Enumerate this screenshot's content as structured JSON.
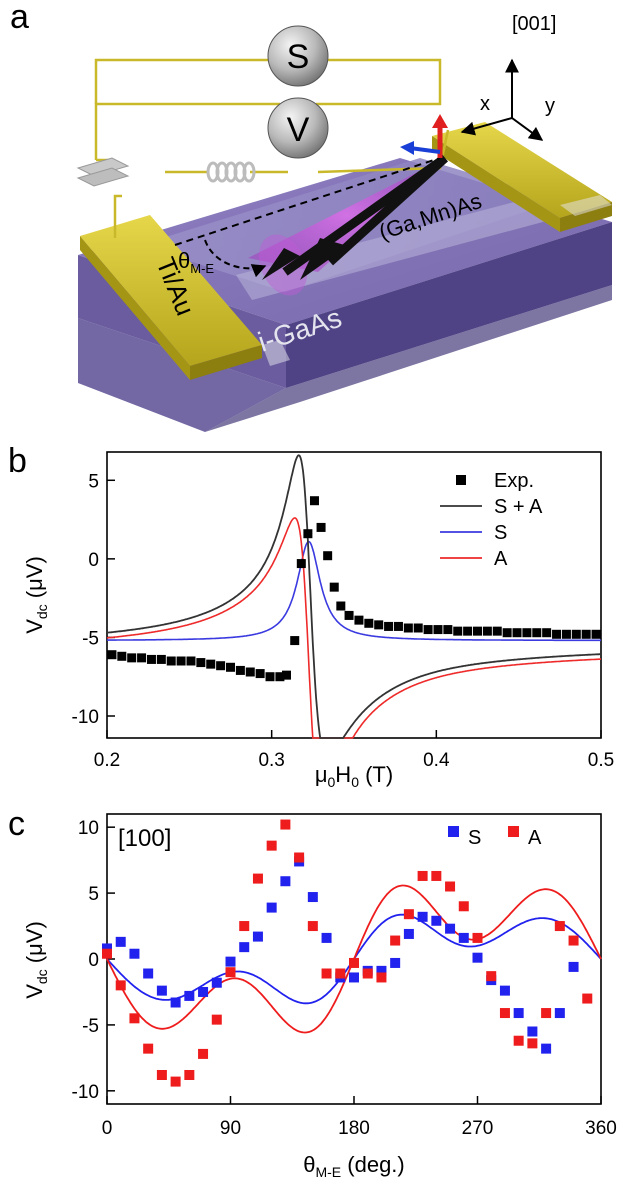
{
  "panel_a": {
    "letter": "a",
    "axis_001": "[001]",
    "axis_x": "x",
    "axis_y": "y",
    "source_label": "S",
    "meter_label": "V",
    "layer_label": "(Ga,Mn)As",
    "substrate_label": "i-GaAs",
    "contact_label": "Ti/Au",
    "angle_symbol": "θ",
    "angle_sub": "M-E"
  },
  "chart_data": [
    {
      "panel": "b",
      "type": "line",
      "xlabel": "μ0H0 (T)",
      "xlabel_main": "μ",
      "xlabel_sub1": "0",
      "xlabel_mid": "H",
      "xlabel_sub2": "0",
      "xlabel_unit": " (T)",
      "ylabel": "Vdc (μV)",
      "ylabel_main": "V",
      "ylabel_sub": "dc",
      "ylabel_unit": " (μV)",
      "xlim": [
        0.2,
        0.5
      ],
      "ylim": [
        -11.4,
        6.8
      ],
      "x_ticks": [
        0.2,
        0.3,
        0.4,
        0.5
      ],
      "x_tick_labels": [
        "0.2",
        "0.3",
        "0.4",
        "0.5"
      ],
      "y_ticks": [
        5,
        0,
        -5,
        -10
      ],
      "y_tick_labels": [
        "5",
        "0",
        "-5",
        "-10"
      ],
      "legend_position": "top-right",
      "legend": [
        "Exp.",
        "S + A",
        "S",
        "A"
      ],
      "colors": {
        "exp": "#000000",
        "fit": "#333333",
        "S": "#3a3ae0",
        "A": "#ee2a2a"
      },
      "fit_params": {
        "x0": 0.3225,
        "dH": 0.0085,
        "S_amp": 6.3,
        "A_amp": 9.2,
        "offset_low": -6.0,
        "offset_high": -5.2,
        "wall_center": 0.3,
        "wall_width": 0.012
      },
      "series": [
        {
          "name": "Exp.",
          "kind": "markers",
          "x": [
            0.203,
            0.209,
            0.215,
            0.221,
            0.227,
            0.233,
            0.239,
            0.245,
            0.251,
            0.257,
            0.263,
            0.269,
            0.275,
            0.281,
            0.287,
            0.293,
            0.299,
            0.305,
            0.309,
            0.314,
            0.318,
            0.322,
            0.326,
            0.33,
            0.334,
            0.338,
            0.342,
            0.347,
            0.353,
            0.359,
            0.365,
            0.371,
            0.377,
            0.383,
            0.389,
            0.395,
            0.401,
            0.407,
            0.413,
            0.419,
            0.425,
            0.431,
            0.437,
            0.443,
            0.449,
            0.455,
            0.461,
            0.467,
            0.473,
            0.479,
            0.485,
            0.491,
            0.497
          ],
          "y": [
            -6.1,
            -6.2,
            -6.3,
            -6.3,
            -6.4,
            -6.4,
            -6.5,
            -6.5,
            -6.5,
            -6.6,
            -6.7,
            -6.8,
            -6.9,
            -7.1,
            -7.2,
            -7.3,
            -7.5,
            -7.5,
            -7.4,
            -5.2,
            -0.3,
            1.6,
            3.7,
            2.0,
            0.2,
            -1.8,
            -3.0,
            -3.6,
            -3.9,
            -4.1,
            -4.2,
            -4.3,
            -4.3,
            -4.4,
            -4.4,
            -4.5,
            -4.5,
            -4.5,
            -4.6,
            -4.6,
            -4.6,
            -4.6,
            -4.6,
            -4.7,
            -4.7,
            -4.7,
            -4.7,
            -4.7,
            -4.8,
            -4.8,
            -4.8,
            -4.8,
            -4.8
          ]
        },
        {
          "name": "S + A",
          "kind": "line"
        },
        {
          "name": "S",
          "kind": "line"
        },
        {
          "name": "A",
          "kind": "line"
        }
      ]
    },
    {
      "panel": "c",
      "type": "scatter",
      "annotation": "[100]",
      "xlabel": "θM-E (deg.)",
      "xlabel_main": "θ",
      "xlabel_sub": "M-E",
      "xlabel_unit": " (deg.)",
      "ylabel": "Vdc (μV)",
      "ylabel_main": "V",
      "ylabel_sub": "dc",
      "ylabel_unit": " (μV)",
      "xlim": [
        0,
        360
      ],
      "ylim": [
        -11,
        11
      ],
      "x_ticks": [
        0,
        90,
        180,
        270,
        360
      ],
      "x_tick_labels": [
        "0",
        "90",
        "180",
        "270",
        "360"
      ],
      "y_ticks": [
        10,
        5,
        0,
        -5,
        -10
      ],
      "y_tick_labels": [
        "10",
        "5",
        "0",
        "-5",
        "-10"
      ],
      "legend_position": "top-right",
      "legend": [
        "S",
        "A"
      ],
      "colors": {
        "S": "#2222ee",
        "A": "#ee1c1c"
      },
      "series": [
        {
          "name": "S",
          "x": [
            0,
            10,
            20,
            30,
            40,
            50,
            60,
            70,
            80,
            90,
            100,
            110,
            120,
            130,
            140,
            150,
            160,
            170,
            180,
            190,
            200,
            210,
            220,
            230,
            240,
            250,
            260,
            270,
            280,
            290,
            300,
            310,
            320,
            330,
            340
          ],
          "y": [
            0.8,
            1.3,
            0.4,
            -1.1,
            -2.4,
            -3.3,
            -2.8,
            -2.5,
            -1.8,
            -0.2,
            0.9,
            1.7,
            3.9,
            5.9,
            7.4,
            4.7,
            1.6,
            -1.4,
            -1.4,
            -0.9,
            -0.9,
            -0.3,
            1.9,
            3.2,
            2.9,
            2.3,
            1.6,
            0.1,
            -1.6,
            -2.4,
            -4.1,
            -5.5,
            -6.8,
            -4.1,
            -0.6
          ],
          "fit": {
            "offset": 0,
            "a1": -1.0,
            "a2": -2.1,
            "a3": -2.7,
            "a4": 0.3,
            "phase4": 0
          }
        },
        {
          "name": "A",
          "x": [
            0,
            10,
            20,
            30,
            40,
            50,
            60,
            70,
            80,
            90,
            100,
            110,
            120,
            130,
            140,
            150,
            160,
            170,
            180,
            190,
            200,
            210,
            220,
            230,
            240,
            250,
            260,
            270,
            280,
            290,
            300,
            310,
            320,
            330,
            340,
            350
          ],
          "y": [
            0.4,
            -2.0,
            -4.5,
            -6.8,
            -8.8,
            -9.3,
            -8.8,
            -7.2,
            -4.6,
            -1.0,
            2.5,
            6.1,
            8.6,
            10.2,
            7.7,
            2.5,
            -1.1,
            -1.1,
            -0.3,
            -1.1,
            -1.4,
            1.4,
            3.4,
            6.3,
            6.3,
            5.5,
            4.0,
            1.6,
            -1.3,
            -4.1,
            -6.2,
            -6.4,
            -4.1,
            2.5,
            1.4,
            -3.0
          ],
          "fit": {
            "offset": 0,
            "a1": -1.5,
            "a2": -3.0,
            "a3": -4.7,
            "a4": 0.3,
            "phase4": 0
          }
        }
      ]
    }
  ]
}
